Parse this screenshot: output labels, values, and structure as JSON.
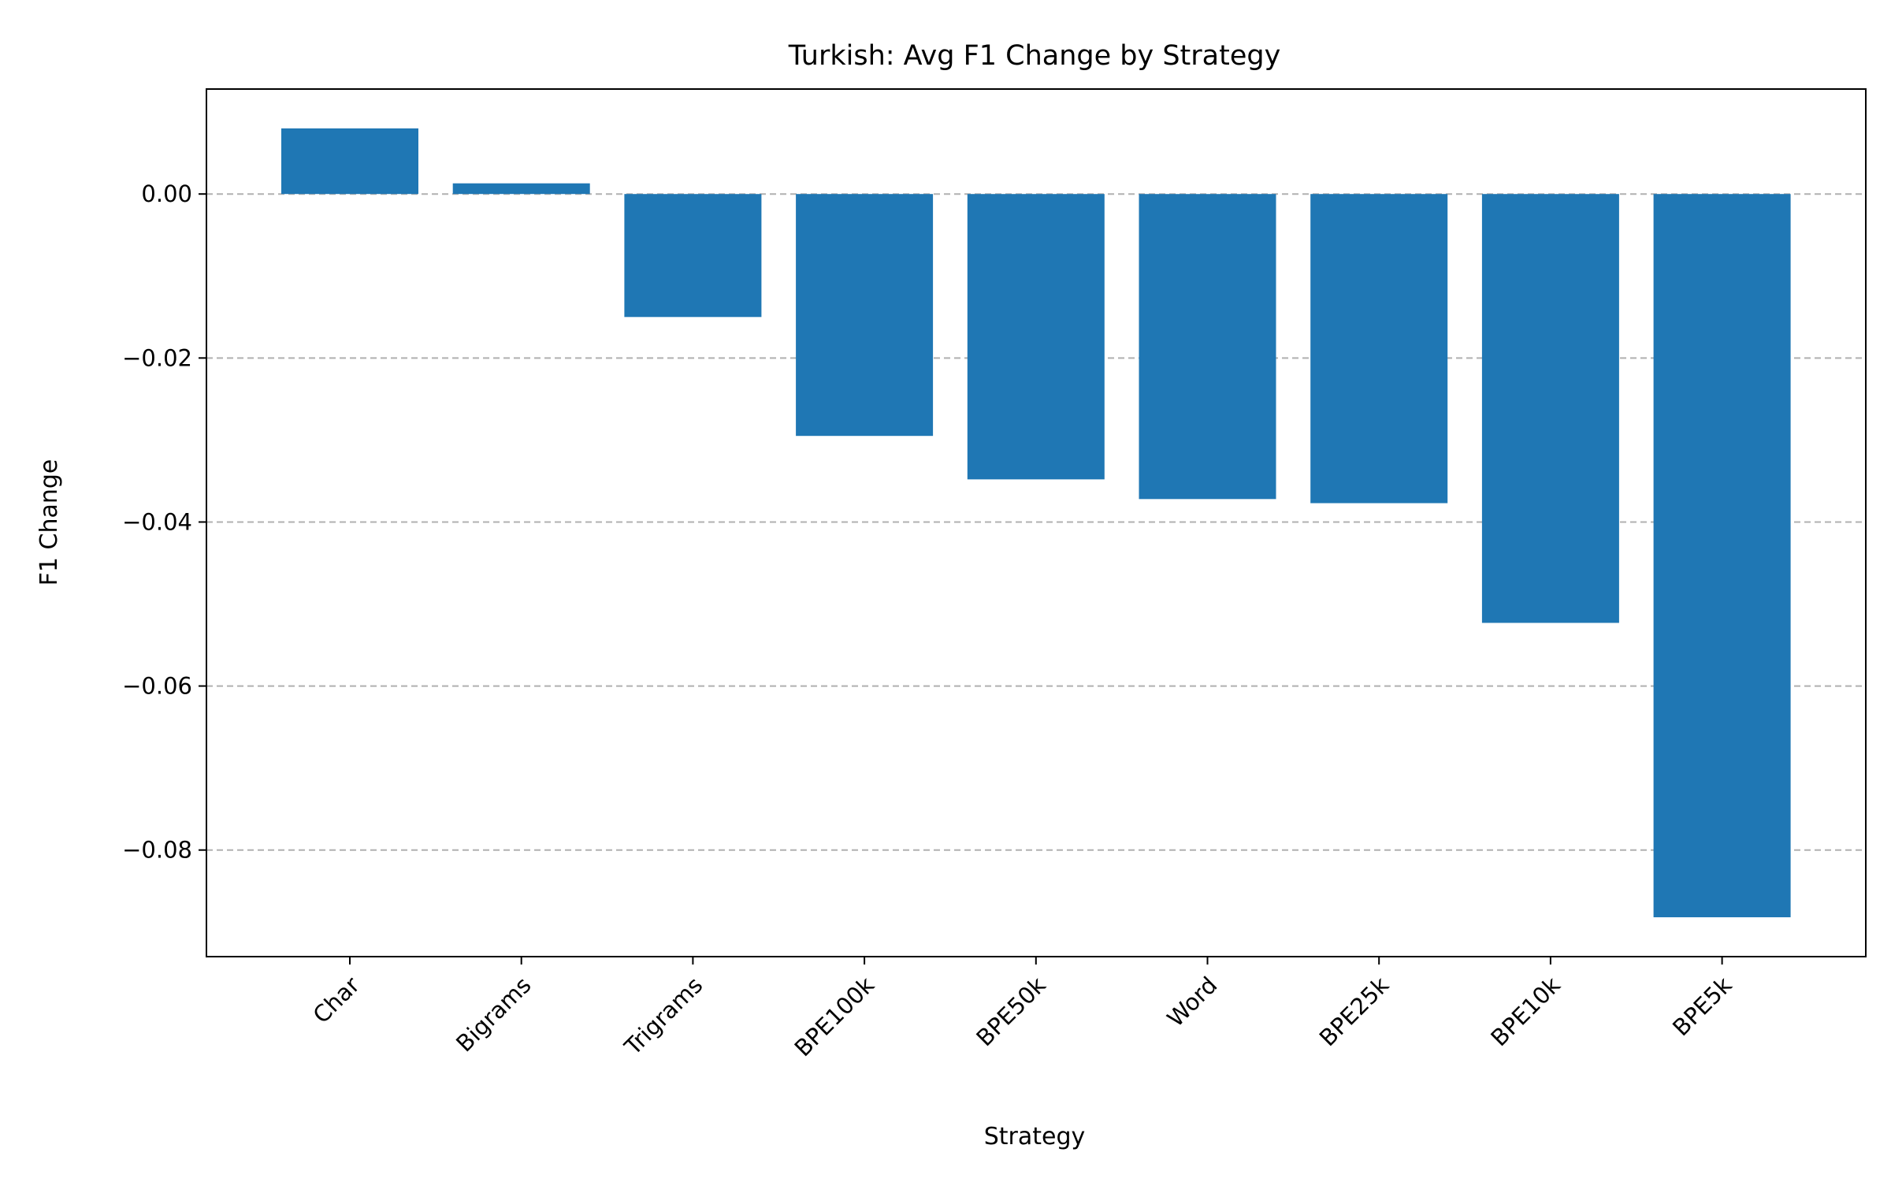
{
  "chart_data": {
    "type": "bar",
    "title": "Turkish: Avg F1 Change by Strategy",
    "xlabel": "Strategy",
    "ylabel": "F1 Change",
    "categories": [
      "Char",
      "Bigrams",
      "Trigrams",
      "BPE100k",
      "BPE50k",
      "Word",
      "BPE25k",
      "BPE10k",
      "BPE5k"
    ],
    "values": [
      0.008,
      0.0013,
      -0.015,
      -0.0295,
      -0.0348,
      -0.0372,
      -0.0377,
      -0.0523,
      -0.0882
    ],
    "ylim": [
      -0.093,
      0.0128
    ],
    "yticks": [
      0.0,
      -0.02,
      -0.04,
      -0.06,
      -0.08
    ],
    "ytick_labels": [
      "0.00",
      "−0.02",
      "−0.04",
      "−0.06",
      "−0.08"
    ],
    "bar_color": "#1f77b4",
    "grid": "y-dashed",
    "legend": "none"
  }
}
